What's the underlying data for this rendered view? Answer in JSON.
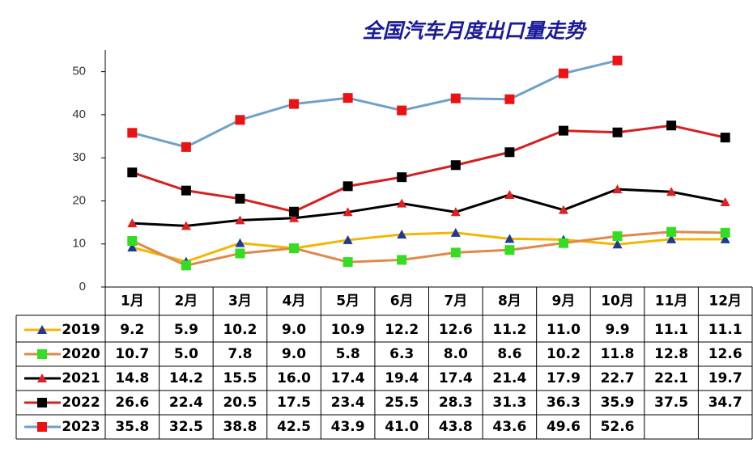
{
  "chart_data": {
    "type": "line",
    "title": "全国汽车月度出口量走势",
    "categories": [
      "1月",
      "2月",
      "3月",
      "4月",
      "5月",
      "6月",
      "7月",
      "8月",
      "9月",
      "10月",
      "11月",
      "12月"
    ],
    "ylim": [
      0,
      55
    ],
    "yticks": [
      0,
      10,
      20,
      30,
      40,
      50
    ],
    "series": [
      {
        "name": "2019",
        "color": "#f2b705",
        "marker": "triangle",
        "marker_color": "#1f3a93",
        "values": [
          9.2,
          5.9,
          10.2,
          9.0,
          10.9,
          12.2,
          12.6,
          11.2,
          11.0,
          9.9,
          11.1,
          11.1
        ],
        "value_labels": [
          "9.2",
          "5.9",
          "10.2",
          "9.0",
          "10.9",
          "12.2",
          "12.6",
          "11.2",
          "11.0",
          "9.9",
          "11.1",
          "11.1"
        ]
      },
      {
        "name": "2020",
        "color": "#e0884a",
        "marker": "square",
        "marker_color": "#33dd22",
        "values": [
          10.7,
          5.0,
          7.8,
          9.0,
          5.8,
          6.3,
          8.0,
          8.6,
          10.2,
          11.8,
          12.8,
          12.6
        ],
        "value_labels": [
          "10.7",
          "5.0",
          "7.8",
          "9.0",
          "5.8",
          "6.3",
          "8.0",
          "8.6",
          "10.2",
          "11.8",
          "12.8",
          "12.6"
        ]
      },
      {
        "name": "2021",
        "color": "#000000",
        "marker": "triangle",
        "marker_color": "#e02020",
        "values": [
          14.8,
          14.2,
          15.5,
          16.0,
          17.4,
          19.4,
          17.4,
          21.4,
          17.9,
          22.7,
          22.1,
          19.7
        ],
        "value_labels": [
          "14.8",
          "14.2",
          "15.5",
          "16.0",
          "17.4",
          "19.4",
          "17.4",
          "21.4",
          "17.9",
          "22.7",
          "22.1",
          "19.7"
        ]
      },
      {
        "name": "2022",
        "color": "#d42020",
        "marker": "square",
        "marker_color": "#000000",
        "values": [
          26.6,
          22.4,
          20.5,
          17.5,
          23.4,
          25.5,
          28.3,
          31.3,
          36.3,
          35.9,
          37.5,
          34.7
        ],
        "value_labels": [
          "26.6",
          "22.4",
          "20.5",
          "17.5",
          "23.4",
          "25.5",
          "28.3",
          "31.3",
          "36.3",
          "35.9",
          "37.5",
          "34.7"
        ]
      },
      {
        "name": "2023",
        "color": "#6fa0cc",
        "marker": "square",
        "marker_color": "#ee1111",
        "values": [
          35.8,
          32.5,
          38.8,
          42.5,
          43.9,
          41.0,
          43.8,
          43.6,
          49.6,
          52.6,
          null,
          null
        ],
        "value_labels": [
          "35.8",
          "32.5",
          "38.8",
          "42.5",
          "43.9",
          "41.0",
          "43.8",
          "43.6",
          "49.6",
          "52.6",
          null,
          null
        ]
      }
    ]
  }
}
